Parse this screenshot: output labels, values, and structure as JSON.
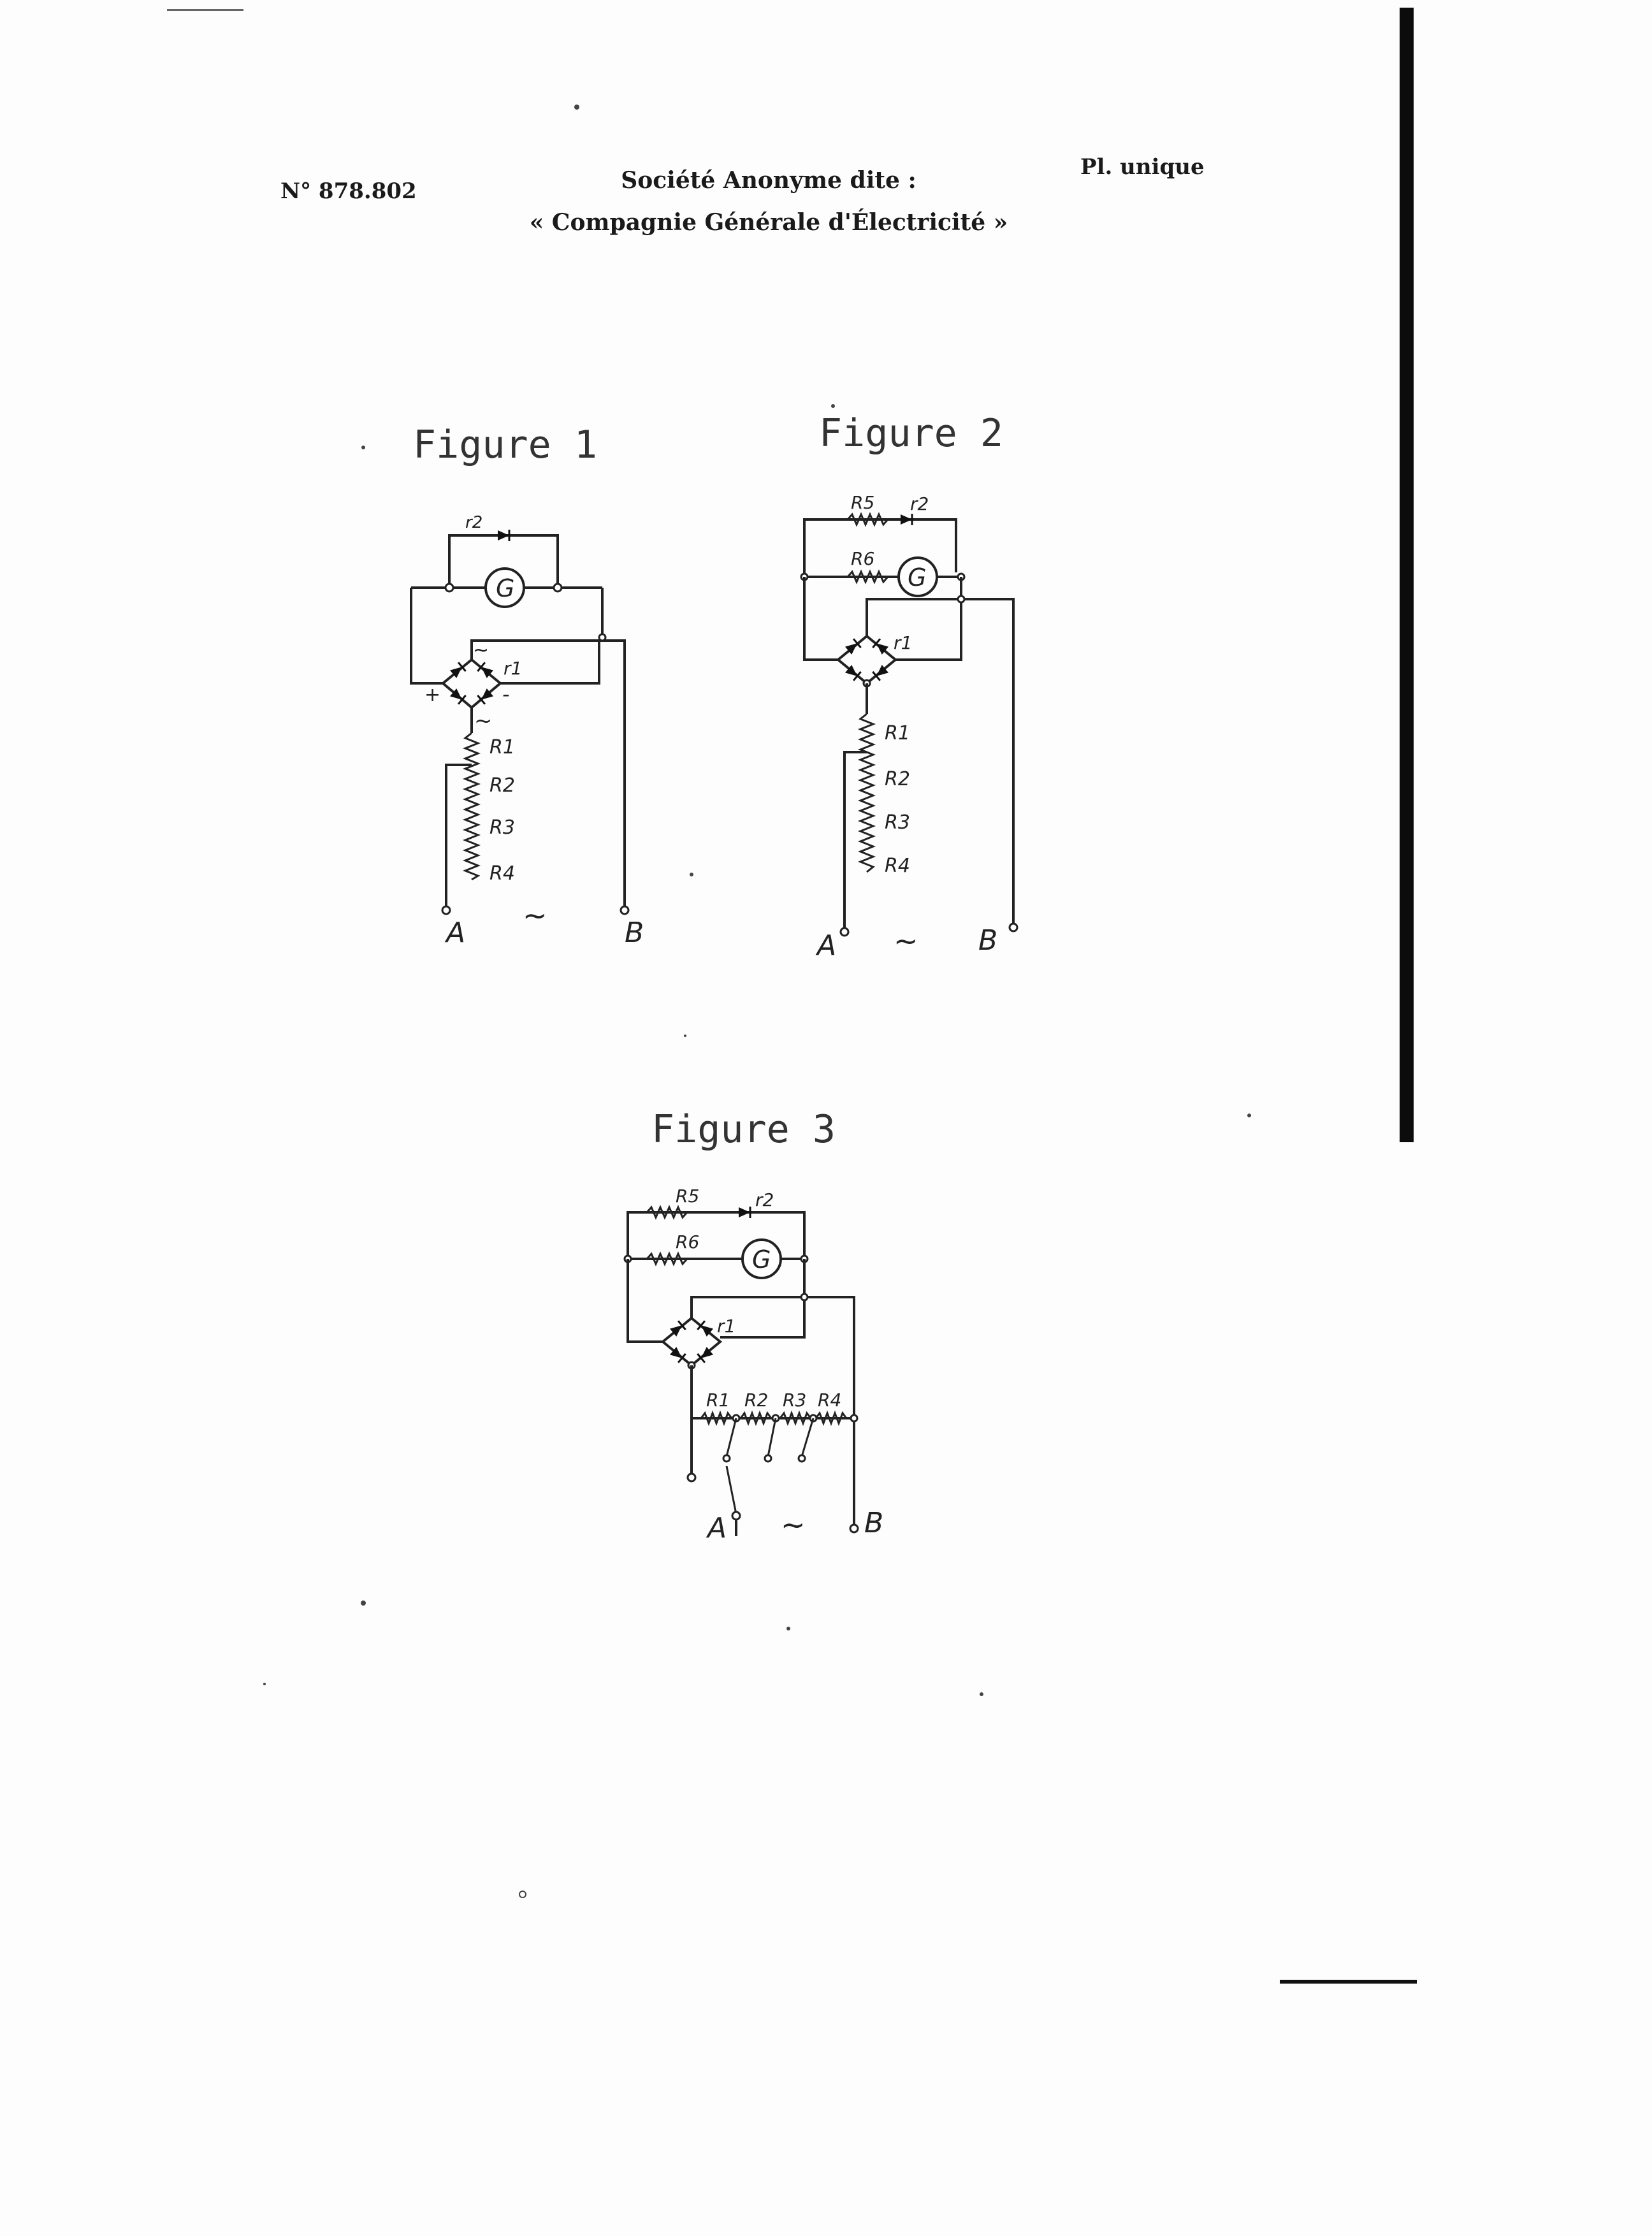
{
  "header": {
    "number": "N° 878.802",
    "company_line1": "Société Anonyme dite :",
    "company_line2": "« Compagnie Générale d'Électricité »",
    "plate": "Pl. unique"
  },
  "figures": [
    {
      "title": "Figure 1",
      "labels": {
        "r2": "r2",
        "g": "G",
        "r1": "r1",
        "plus": "+",
        "minus": "-",
        "ac_top": "~",
        "ac_bot": "~",
        "R1": "R1",
        "R2": "R2",
        "R3": "R3",
        "R4": "R4",
        "A": "A",
        "B": "B",
        "ac": "~"
      }
    },
    {
      "title": "Figure 2",
      "labels": {
        "R5": "R5",
        "r2": "r2",
        "R6": "R6",
        "g": "G",
        "r1": "r1",
        "R1": "R1",
        "R2": "R2",
        "R3": "R3",
        "R4": "R4",
        "A": "A",
        "B": "B",
        "ac": "~"
      }
    },
    {
      "title": "Figure 3",
      "labels": {
        "R5": "R5",
        "r2": "r2",
        "R6": "R6",
        "g": "G",
        "r1": "r1",
        "R1": "R1",
        "R2": "R2",
        "R3": "R3",
        "R4": "R4",
        "A": "A",
        "B": "B",
        "ac": "~"
      }
    }
  ]
}
